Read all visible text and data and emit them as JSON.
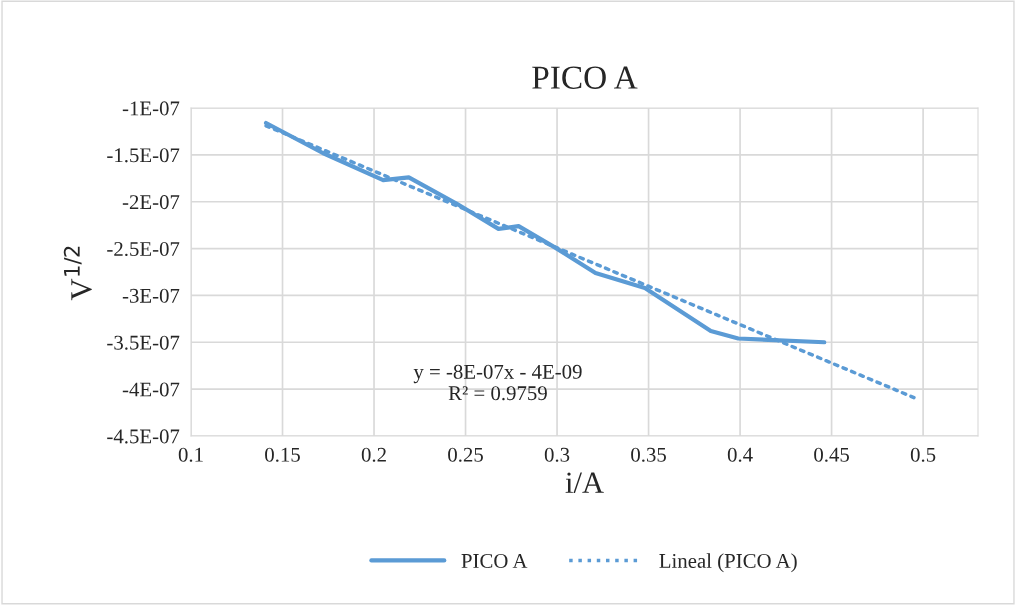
{
  "chart_data": {
    "type": "line",
    "title": "PICO A",
    "xlabel": "i/A",
    "ylabel": "V$^{1/2}$",
    "series": [
      {
        "name": "PICO A",
        "color": "#5b9bd5",
        "line_style": "solid",
        "x": [
          0.141,
          0.172,
          0.205,
          0.219,
          0.245,
          0.268,
          0.279,
          0.299,
          0.321,
          0.348,
          0.384,
          0.399,
          0.446
        ],
        "values": [
          -1.16e-07,
          -1.48e-07,
          -1.77e-07,
          -1.74e-07,
          -2.02e-07,
          -2.29e-07,
          -2.26e-07,
          -2.49e-07,
          -2.76e-07,
          -2.92e-07,
          -3.38e-07,
          -3.46e-07,
          -3.5e-07
        ]
      },
      {
        "name": "Lineal (PICO A)",
        "color": "#5b9bd5",
        "line_style": "dotted",
        "x": [
          0.141,
          0.495
        ],
        "values": [
          -1.19e-07,
          -4.09e-07
        ]
      }
    ],
    "xlim": [
      0.1,
      0.53
    ],
    "xticks": [
      0.1,
      0.15,
      0.2,
      0.25,
      0.3,
      0.35,
      0.4,
      0.45,
      0.5
    ],
    "ylim": [
      -4.5e-07,
      -1e-07
    ],
    "yticks": [
      {
        "value": -4.5e-07,
        "label": "-4.5E-07"
      },
      {
        "value": -4e-07,
        "label": "-4E-07"
      },
      {
        "value": -3.5e-07,
        "label": "-3.5E-07"
      },
      {
        "value": -3e-07,
        "label": "-3E-07"
      },
      {
        "value": -2.5e-07,
        "label": "-2.5E-07"
      },
      {
        "value": -2e-07,
        "label": "-2E-07"
      },
      {
        "value": -1.5e-07,
        "label": "-1.5E-07"
      },
      {
        "value": -1e-07,
        "label": "-1E-07"
      }
    ],
    "annotations": [
      "y = -8E-07x - 4E-09",
      "R² = 0.9759"
    ],
    "grid": true,
    "legend": "bottom",
    "marker": "none"
  }
}
